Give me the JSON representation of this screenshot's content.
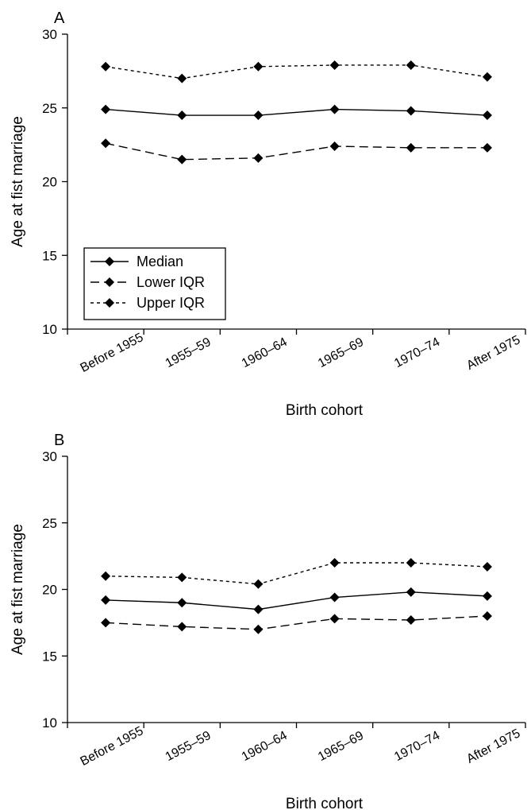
{
  "chart_data": [
    {
      "type": "line",
      "panel_label": "A",
      "categories": [
        "Before 1955",
        "1955–59",
        "1960–64",
        "1965–69",
        "1970–74",
        "After 1975"
      ],
      "xlabel": "Birth cohort",
      "ylabel": "Age at fist marriage",
      "ylim": [
        10,
        30
      ],
      "yticks": [
        "10",
        "15",
        "20",
        "25",
        "30"
      ],
      "grid": false,
      "legend": {
        "placement": "bottom-left",
        "entries": [
          "Median",
          "Lower IQR",
          "Upper IQR"
        ]
      },
      "series": [
        {
          "name": "Median",
          "style": "solid",
          "values": [
            24.9,
            24.5,
            24.5,
            24.9,
            24.8,
            24.5
          ]
        },
        {
          "name": "Lower IQR",
          "style": "dashed",
          "values": [
            22.6,
            21.5,
            21.6,
            22.4,
            22.3,
            22.3
          ]
        },
        {
          "name": "Upper IQR",
          "style": "dotted",
          "values": [
            27.8,
            27.0,
            27.8,
            27.9,
            27.9,
            27.1
          ]
        }
      ]
    },
    {
      "type": "line",
      "panel_label": "B",
      "categories": [
        "Before 1955",
        "1955–59",
        "1960–64",
        "1965–69",
        "1970–74",
        "After 1975"
      ],
      "xlabel": "Birth cohort",
      "ylabel": "Age at fist marriage",
      "ylim": [
        10,
        30
      ],
      "yticks": [
        "10",
        "15",
        "20",
        "25",
        "30"
      ],
      "grid": false,
      "series": [
        {
          "style": "solid",
          "values": [
            19.2,
            19.0,
            18.5,
            19.4,
            19.8,
            19.5
          ]
        },
        {
          "style": "dashed",
          "values": [
            17.5,
            17.2,
            17.0,
            17.8,
            17.7,
            18.0
          ]
        },
        {
          "style": "dotted",
          "values": [
            21.0,
            20.9,
            20.4,
            22.0,
            22.0,
            21.7
          ]
        }
      ]
    }
  ]
}
